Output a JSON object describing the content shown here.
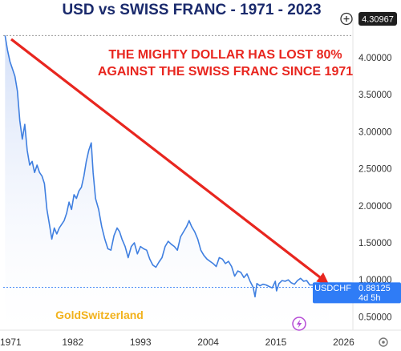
{
  "chart_data": {
    "type": "line",
    "title": "USD vs SWISS FRANC  - 1971 - 2023",
    "series": [
      {
        "name": "USDCHF",
        "color": "#3f7fe0",
        "x": [
          1971.0,
          1971.4,
          1971.8,
          1972.2,
          1972.6,
          1973.0,
          1973.4,
          1973.8,
          1974.2,
          1974.6,
          1975.0,
          1975.4,
          1975.8,
          1976.2,
          1976.6,
          1977.0,
          1977.4,
          1977.8,
          1978.2,
          1978.6,
          1979.0,
          1979.4,
          1979.8,
          1980.2,
          1980.6,
          1981.0,
          1981.4,
          1981.8,
          1982.2,
          1982.6,
          1983.0,
          1983.4,
          1983.8,
          1984.2,
          1984.6,
          1985.0,
          1985.3,
          1985.7,
          1986.2,
          1986.7,
          1987.2,
          1987.7,
          1988.2,
          1988.7,
          1989.2,
          1989.6,
          1990.0,
          1990.5,
          1991.0,
          1991.5,
          1992.0,
          1992.5,
          1993.0,
          1993.5,
          1994.0,
          1994.5,
          1995.0,
          1995.5,
          1996.0,
          1996.5,
          1997.0,
          1997.5,
          1998.0,
          1998.5,
          1999.0,
          1999.5,
          2000.0,
          2000.5,
          2000.9,
          2001.3,
          2001.8,
          2002.3,
          2002.8,
          2003.3,
          2003.8,
          2004.3,
          2004.8,
          2005.3,
          2005.8,
          2006.3,
          2006.8,
          2007.3,
          2007.8,
          2008.3,
          2008.8,
          2009.3,
          2009.8,
          2010.3,
          2010.8,
          2011.3,
          2011.6,
          2011.9,
          2012.4,
          2012.9,
          2013.4,
          2013.9,
          2014.4,
          2014.9,
          2015.1,
          2015.5,
          2016.0,
          2016.5,
          2017.0,
          2017.5,
          2018.0,
          2018.5,
          2019.0,
          2019.5,
          2020.0,
          2020.5,
          2021.0,
          2021.5,
          2022.0,
          2022.5,
          2022.9,
          2023.3,
          2023.7
        ],
        "values": [
          4.3,
          4.1,
          3.95,
          3.85,
          3.75,
          3.55,
          3.15,
          2.9,
          3.1,
          2.75,
          2.55,
          2.6,
          2.45,
          2.55,
          2.45,
          2.4,
          2.3,
          1.95,
          1.75,
          1.55,
          1.7,
          1.62,
          1.7,
          1.75,
          1.8,
          1.9,
          2.05,
          1.95,
          2.15,
          2.1,
          2.2,
          2.25,
          2.4,
          2.6,
          2.75,
          2.85,
          2.45,
          2.1,
          1.95,
          1.72,
          1.55,
          1.42,
          1.4,
          1.6,
          1.7,
          1.65,
          1.55,
          1.45,
          1.3,
          1.45,
          1.5,
          1.35,
          1.45,
          1.42,
          1.4,
          1.28,
          1.2,
          1.17,
          1.24,
          1.3,
          1.45,
          1.52,
          1.48,
          1.45,
          1.4,
          1.58,
          1.65,
          1.72,
          1.8,
          1.72,
          1.65,
          1.55,
          1.4,
          1.33,
          1.28,
          1.25,
          1.22,
          1.18,
          1.3,
          1.28,
          1.22,
          1.25,
          1.18,
          1.05,
          1.12,
          1.1,
          1.03,
          1.08,
          0.98,
          0.9,
          0.77,
          0.95,
          0.92,
          0.94,
          0.93,
          0.91,
          0.89,
          0.98,
          0.85,
          0.95,
          0.99,
          0.98,
          1.0,
          0.96,
          0.94,
          0.99,
          1.02,
          0.98,
          0.99,
          0.93,
          0.93,
          0.9,
          0.92,
          0.95,
          0.97,
          0.91,
          0.9
        ],
        "last_value": "0.88125",
        "last_tag_sub": "4d 5h"
      }
    ],
    "y_ticks": [
      "4.00000",
      "3.50000",
      "3.00000",
      "2.50000",
      "2.00000",
      "1.50000",
      "1.00000",
      "0.50000"
    ],
    "y_tick_values": [
      4.0,
      3.5,
      3.0,
      2.5,
      2.0,
      1.5,
      1.0,
      0.5
    ],
    "x_ticks": [
      "1971",
      "1982",
      "1993",
      "2004",
      "2015",
      "2026"
    ],
    "x_tick_values": [
      1971,
      1982,
      1993,
      2004,
      2015,
      2026
    ],
    "xlim": [
      1970.7,
      2027.5
    ],
    "ylim": [
      0.32,
      4.52
    ],
    "high_label": "4.30967",
    "annotation_line1": "THE MIGHTY DOLLAR HAS LOST 80%",
    "annotation_line2": "AGAINST THE SWISS FRANC SINCE 1971",
    "annotation_color": "#e8261f",
    "arrow_from": {
      "x": 1972.0,
      "y": 4.25
    },
    "arrow_to": {
      "x": 2023.0,
      "y": 0.98
    },
    "watermark": "GoldSwitzerland",
    "watermark_color": "#f2b21c",
    "title_color": "#1a2a6c",
    "tag_color": "#2f7cf6"
  }
}
